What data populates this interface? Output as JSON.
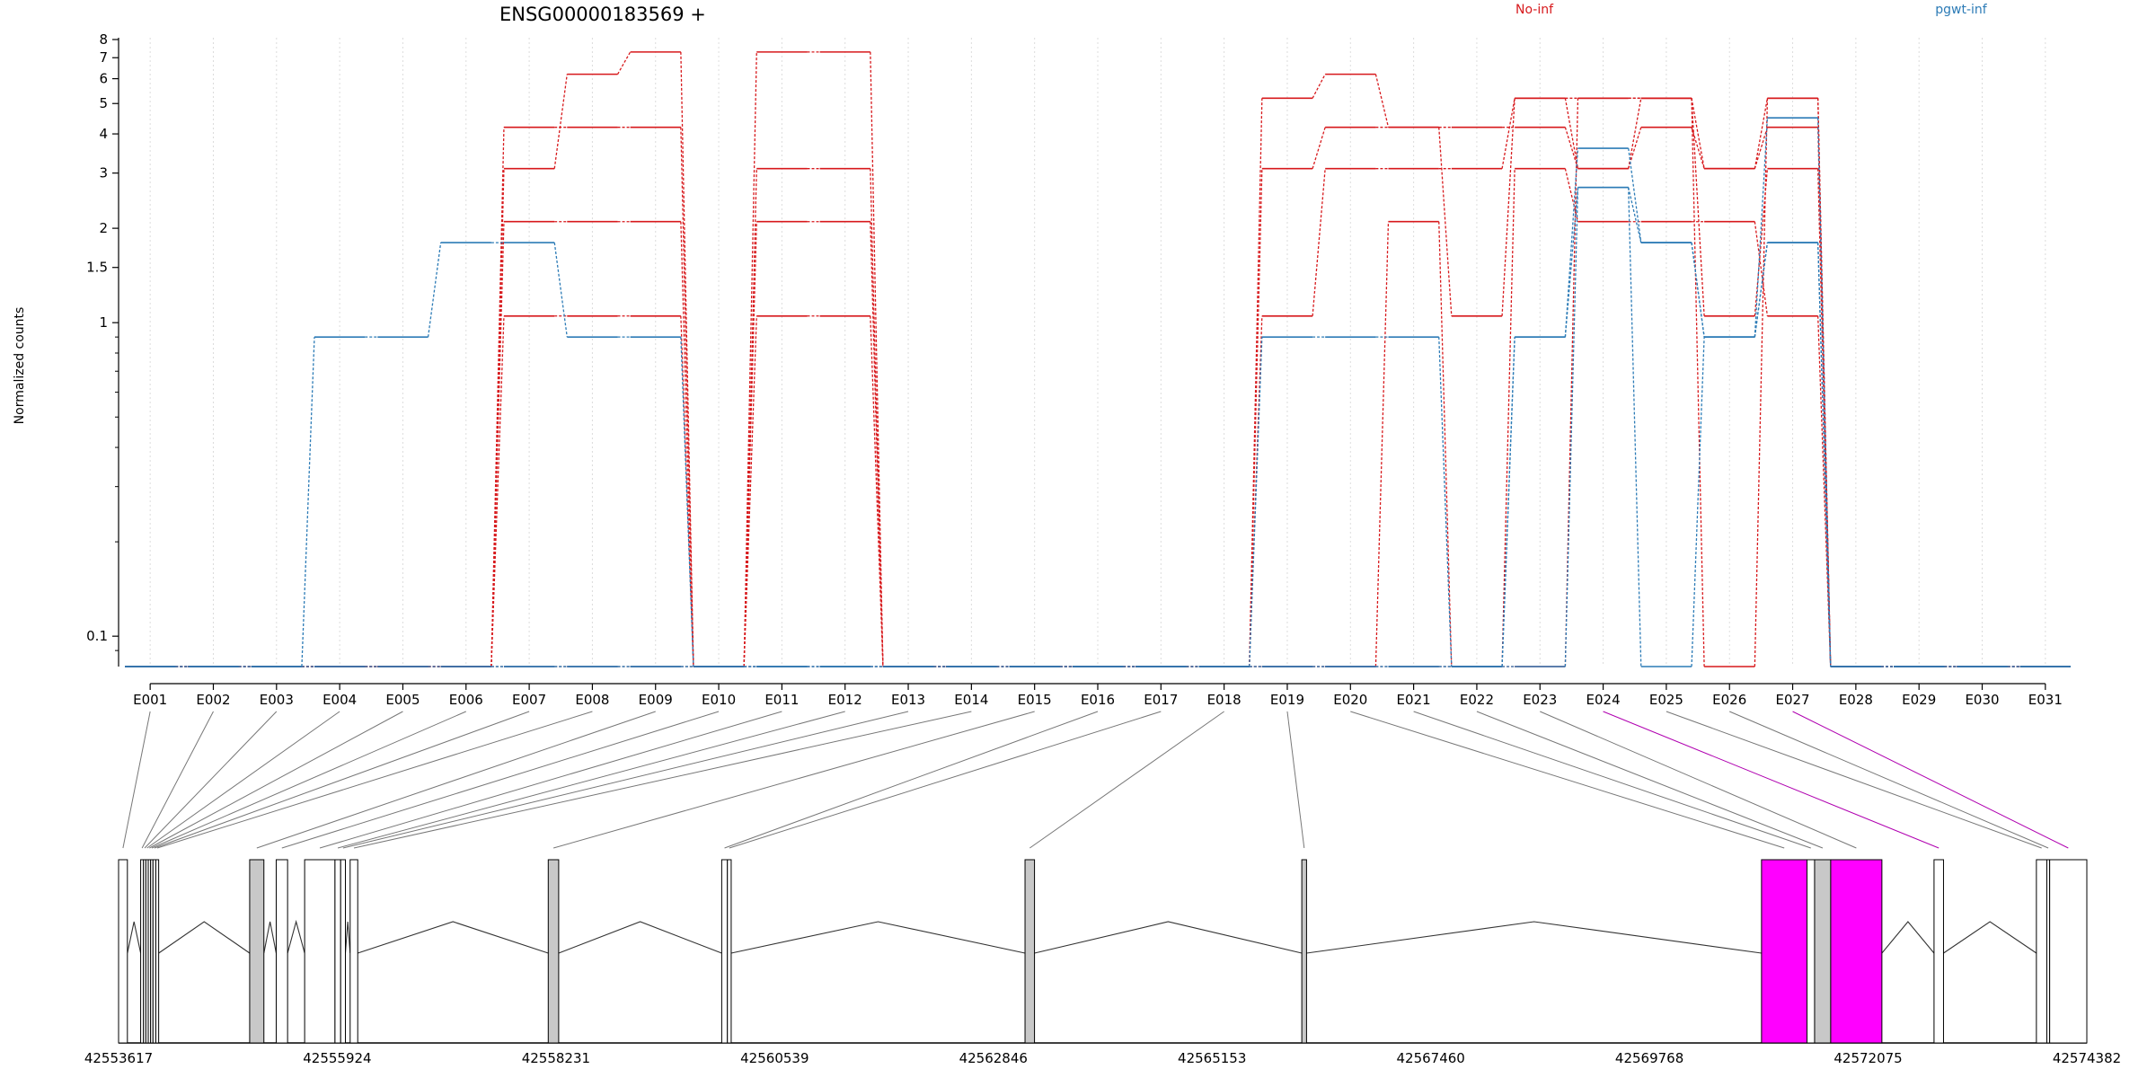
{
  "chart_data": {
    "type": "line",
    "title": "ENSG00000183569 +",
    "ylabel": "Normalized counts",
    "xlabel": "",
    "y_scale": "log",
    "ylim": [
      0.08,
      8
    ],
    "y_ticks": [
      {
        "value": 0.1,
        "label": "0.1"
      },
      {
        "value": 1,
        "label": "1"
      },
      {
        "value": 1.5,
        "label": "1.5"
      },
      {
        "value": 2,
        "label": "2"
      },
      {
        "value": 3,
        "label": "3"
      },
      {
        "value": 4,
        "label": "4"
      },
      {
        "value": 5,
        "label": "5"
      },
      {
        "value": 6,
        "label": "6"
      },
      {
        "value": 7,
        "label": "7"
      },
      {
        "value": 8,
        "label": "8"
      }
    ],
    "grid": "vertical dotted",
    "legend": [
      {
        "name": "No-inf",
        "color": "#d7191c"
      },
      {
        "name": "pgwt-inf",
        "color": "#2c7bb6"
      }
    ],
    "legend_position": "top-right",
    "categories": [
      "E001",
      "E002",
      "E003",
      "E004",
      "E005",
      "E006",
      "E007",
      "E008",
      "E009",
      "E010",
      "E011",
      "E012",
      "E013",
      "E014",
      "E015",
      "E016",
      "E017",
      "E018",
      "E019",
      "E020",
      "E021",
      "E022",
      "E023",
      "E024",
      "E025",
      "E026",
      "E027",
      "E028",
      "E029",
      "E030",
      "E031"
    ],
    "series": [
      {
        "group": "No-inf",
        "color": "#d7191c",
        "values": [
          0.08,
          0.08,
          0.08,
          0.08,
          0.08,
          0.08,
          4.2,
          4.2,
          4.2,
          0.08,
          7.3,
          7.3,
          0.08,
          0.08,
          0.08,
          0.08,
          0.08,
          0.08,
          5.2,
          6.2,
          4.2,
          1.05,
          5.2,
          5.2,
          5.2,
          3.1,
          5.2,
          0.08,
          0.08,
          0.08,
          0.08
        ]
      },
      {
        "group": "No-inf",
        "color": "#d7191c",
        "values": [
          0.08,
          0.08,
          0.08,
          0.08,
          0.08,
          0.08,
          3.1,
          6.2,
          7.3,
          0.08,
          3.1,
          3.1,
          0.08,
          0.08,
          0.08,
          0.08,
          0.08,
          0.08,
          3.1,
          4.2,
          4.2,
          4.2,
          4.2,
          3.1,
          4.2,
          3.1,
          4.2,
          0.08,
          0.08,
          0.08,
          0.08
        ]
      },
      {
        "group": "No-inf",
        "color": "#d7191c",
        "values": [
          0.08,
          0.08,
          0.08,
          0.08,
          0.08,
          0.08,
          2.1,
          2.1,
          2.1,
          0.08,
          2.1,
          2.1,
          0.08,
          0.08,
          0.08,
          0.08,
          0.08,
          0.08,
          1.05,
          3.1,
          3.1,
          3.1,
          5.2,
          3.1,
          5.2,
          1.05,
          3.1,
          0.08,
          0.08,
          0.08,
          0.08
        ]
      },
      {
        "group": "No-inf",
        "color": "#d7191c",
        "values": [
          0.08,
          0.08,
          0.08,
          0.08,
          0.08,
          0.08,
          1.05,
          1.05,
          1.05,
          0.08,
          1.05,
          1.05,
          0.08,
          0.08,
          0.08,
          0.08,
          0.08,
          0.08,
          0.08,
          0.08,
          2.1,
          0.08,
          3.1,
          2.1,
          2.1,
          2.1,
          1.05,
          0.08,
          0.08,
          0.08,
          0.08
        ]
      },
      {
        "group": "No-inf",
        "color": "#d7191c",
        "values": [
          0.08,
          0.08,
          0.08,
          0.08,
          0.08,
          0.08,
          0.08,
          0.08,
          0.08,
          0.08,
          0.08,
          0.08,
          0.08,
          0.08,
          0.08,
          0.08,
          0.08,
          0.08,
          0.08,
          0.08,
          0.08,
          0.08,
          0.08,
          5.2,
          5.2,
          0.08,
          5.2,
          0.08,
          0.08,
          0.08,
          0.08
        ]
      },
      {
        "group": "pgwt-inf",
        "color": "#2c7bb6",
        "values": [
          0.08,
          0.08,
          0.08,
          0.9,
          0.9,
          1.8,
          1.8,
          0.9,
          0.9,
          0.08,
          0.08,
          0.08,
          0.08,
          0.08,
          0.08,
          0.08,
          0.08,
          0.08,
          0.9,
          0.9,
          0.9,
          0.08,
          0.9,
          3.6,
          1.8,
          0.9,
          4.5,
          0.08,
          0.08,
          0.08,
          0.08
        ]
      },
      {
        "group": "pgwt-inf",
        "color": "#2c7bb6",
        "values": [
          0.08,
          0.08,
          0.08,
          0.08,
          0.08,
          0.08,
          0.08,
          0.08,
          0.08,
          0.08,
          0.08,
          0.08,
          0.08,
          0.08,
          0.08,
          0.08,
          0.08,
          0.08,
          0.08,
          0.08,
          0.08,
          0.08,
          0.9,
          2.7,
          1.8,
          0.9,
          1.8,
          0.08,
          0.08,
          0.08,
          0.08
        ]
      },
      {
        "group": "pgwt-inf",
        "color": "#2c7bb6",
        "values": [
          0.08,
          0.08,
          0.08,
          0.08,
          0.08,
          0.08,
          0.08,
          0.08,
          0.08,
          0.08,
          0.08,
          0.08,
          0.08,
          0.08,
          0.08,
          0.08,
          0.08,
          0.08,
          0.08,
          0.08,
          0.08,
          0.08,
          0.08,
          2.7,
          0.08,
          0.9,
          1.8,
          0.08,
          0.08,
          0.08,
          0.08
        ]
      }
    ],
    "genomic_axis": {
      "start": 42553617,
      "end": 42574382,
      "tick_labels": [
        "42553617",
        "42555924",
        "42558231",
        "42560539",
        "42562846",
        "42565153",
        "42567460",
        "42569768",
        "42572075",
        "42574382"
      ]
    },
    "exon_track": [
      {
        "label": "E001",
        "start": 42553617,
        "end": 42553710,
        "fill": "#ffffff"
      },
      {
        "label": "E002",
        "start": 42553850,
        "end": 42553880,
        "fill": "#ffffff"
      },
      {
        "label": "E003",
        "start": 42553880,
        "end": 42553905,
        "fill": "#ffffff"
      },
      {
        "label": "E004",
        "start": 42553905,
        "end": 42553930,
        "fill": "#ffffff"
      },
      {
        "label": "E005",
        "start": 42553930,
        "end": 42553955,
        "fill": "#ffffff"
      },
      {
        "label": "E006",
        "start": 42553955,
        "end": 42553980,
        "fill": "#ffffff"
      },
      {
        "label": "E007",
        "start": 42553980,
        "end": 42554010,
        "fill": "#ffffff"
      },
      {
        "label": "E008",
        "start": 42554010,
        "end": 42554040,
        "fill": "#ffffff"
      },
      {
        "label": "E009",
        "start": 42555000,
        "end": 42555150,
        "fill": "#c8c8c8"
      },
      {
        "label": "E010",
        "start": 42555280,
        "end": 42555400,
        "fill": "#ffffff"
      },
      {
        "label": "E011",
        "start": 42555580,
        "end": 42555900,
        "fill": "#ffffff"
      },
      {
        "label": "E012",
        "start": 42555900,
        "end": 42555960,
        "fill": "#ffffff"
      },
      {
        "label": "E013",
        "start": 42555960,
        "end": 42556010,
        "fill": "#ffffff"
      },
      {
        "label": "E014",
        "start": 42556060,
        "end": 42556140,
        "fill": "#ffffff"
      },
      {
        "label": "E015",
        "start": 42558150,
        "end": 42558260,
        "fill": "#c8c8c8"
      },
      {
        "label": "E016",
        "start": 42559980,
        "end": 42560040,
        "fill": "#ffffff"
      },
      {
        "label": "E017",
        "start": 42560040,
        "end": 42560080,
        "fill": "#ffffff"
      },
      {
        "label": "E018",
        "start": 42563180,
        "end": 42563280,
        "fill": "#c8c8c8"
      },
      {
        "label": "E019",
        "start": 42566100,
        "end": 42566150,
        "fill": "#c8c8c8"
      },
      {
        "label": "E020",
        "start": 42570950,
        "end": 42571430,
        "fill": "#ff00ff"
      },
      {
        "label": "E021",
        "start": 42571430,
        "end": 42571510,
        "fill": "#ffffff"
      },
      {
        "label": "E022",
        "start": 42571510,
        "end": 42571680,
        "fill": "#c8c8c8"
      },
      {
        "label": "E023",
        "start": 42571680,
        "end": 42572220,
        "fill": "#ff00ff"
      },
      {
        "label": "E024",
        "start": 42572770,
        "end": 42572870,
        "fill": "#ffffff"
      },
      {
        "label": "E025",
        "start": 42573850,
        "end": 42573960,
        "fill": "#ffffff"
      },
      {
        "label": "E026",
        "start": 42573960,
        "end": 42573990,
        "fill": "#ffffff"
      },
      {
        "label": "E027",
        "start": 42573990,
        "end": 42574382,
        "fill": "#ffffff"
      }
    ],
    "highlighted_exons": [
      "E024",
      "E027"
    ]
  }
}
